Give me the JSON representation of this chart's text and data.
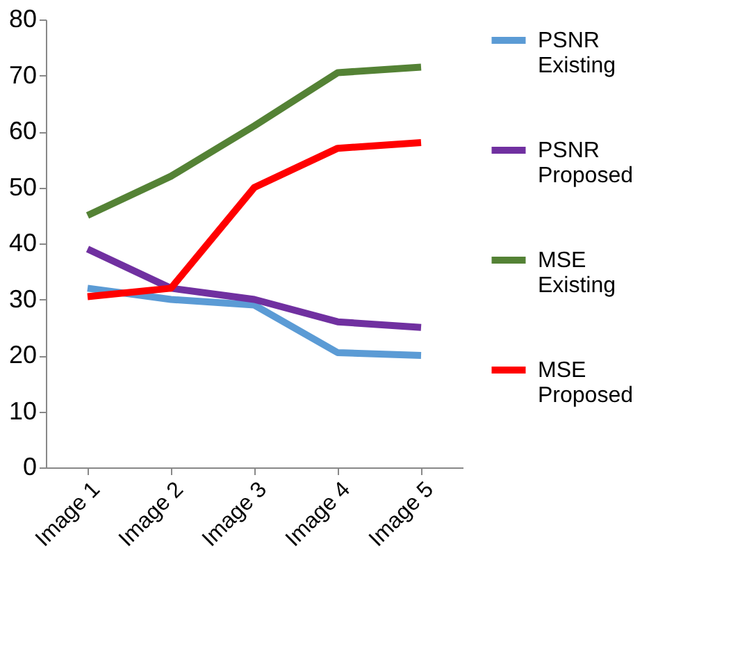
{
  "chart_data": {
    "type": "line",
    "categories": [
      "Image 1",
      "Image 2",
      "Image 3",
      "Image 4",
      "Image 5"
    ],
    "series": [
      {
        "name": "PSNR Existing",
        "color": "#5b9bd5",
        "values": [
          32,
          30,
          29,
          20.5,
          20
        ]
      },
      {
        "name": "PSNR Proposed",
        "color": "#7030a0",
        "values": [
          39,
          32,
          30,
          26,
          25
        ]
      },
      {
        "name": "MSE Existing",
        "color": "#548235",
        "values": [
          45,
          52,
          61,
          70.5,
          71.5
        ]
      },
      {
        "name": "MSE Proposed",
        "color": "#ff0000",
        "values": [
          30.5,
          32,
          50,
          57,
          58
        ]
      }
    ],
    "ylim": [
      0,
      80
    ],
    "yticks": [
      0,
      10,
      20,
      30,
      40,
      50,
      60,
      70,
      80
    ],
    "grid": false,
    "legend": "right",
    "marker": "none",
    "line_style": "solid"
  }
}
